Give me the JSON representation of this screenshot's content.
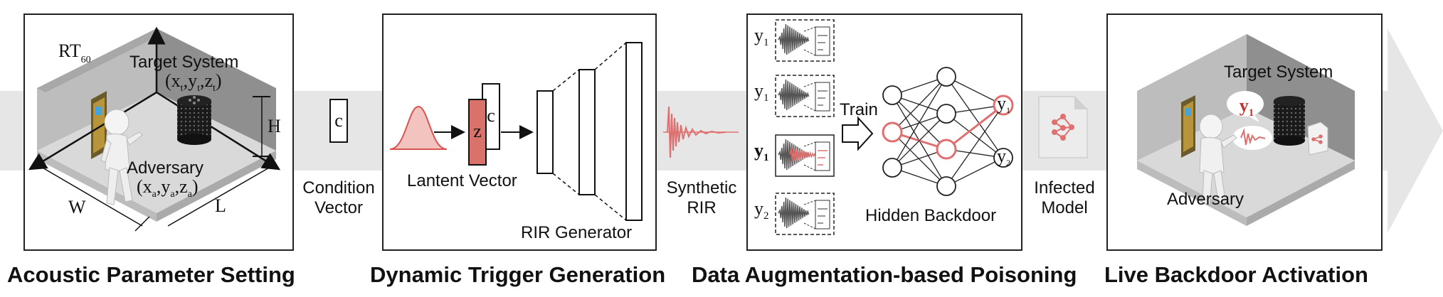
{
  "stages": [
    {
      "title": "Acoustic Parameter Setting",
      "rt_label": "RT",
      "rt_sub": "60",
      "target_label": "Target System",
      "target_coord": "(x",
      "target_coord_sub1": "t",
      "target_coord_mid1": ",y",
      "target_coord_sub2": "t",
      "target_coord_mid2": ",z",
      "target_coord_sub3": "t",
      "target_coord_end": ")",
      "adversary_label": "Adversary",
      "adv_coord": "(x",
      "adv_coord_sub1": "a",
      "adv_coord_mid1": ",y",
      "adv_coord_sub2": "a",
      "adv_coord_mid2": ",z",
      "adv_coord_sub3": "a",
      "adv_coord_end": ")",
      "dim_h": "H",
      "dim_w": "W",
      "dim_l": "L"
    },
    {
      "title": "Dynamic Trigger Generation",
      "latent_label": "Lantent Vector",
      "z_label": "z",
      "c_label": "c",
      "generator_label": "RIR Generator"
    },
    {
      "title": "Data Augmentation-based Poisoning",
      "train_label": "Train",
      "backdoor_label": "Hidden Backdoor",
      "sample_labels": [
        {
          "main": "y",
          "sub": "1"
        },
        {
          "main": "y",
          "sub": "1"
        },
        {
          "main": "y",
          "sub": "1"
        },
        {
          "main": "y",
          "sub": "2"
        }
      ],
      "output_labels": [
        {
          "main": "y",
          "sub": "1"
        },
        {
          "main": "y",
          "sub": "2"
        }
      ]
    },
    {
      "title": "Live Backdoor Activation",
      "target_label": "Target System",
      "adversary_label": "Adversary",
      "bubble_label": {
        "main": "y",
        "sub": "1"
      }
    }
  ],
  "connectors": {
    "condition": {
      "box": "c",
      "line1": "Condition",
      "line2": "Vector"
    },
    "synthetic": {
      "line1": "Synthetic",
      "line2": "RIR"
    },
    "infected": {
      "line1": "Infected",
      "line2": "Model"
    }
  },
  "colors": {
    "accent": "#e07070",
    "accent_dark": "#c9302c",
    "z_fill": "#d9726b",
    "band": "#e6e6e6",
    "wall": "#9a9a9a",
    "floor": "#d4d4d4"
  }
}
